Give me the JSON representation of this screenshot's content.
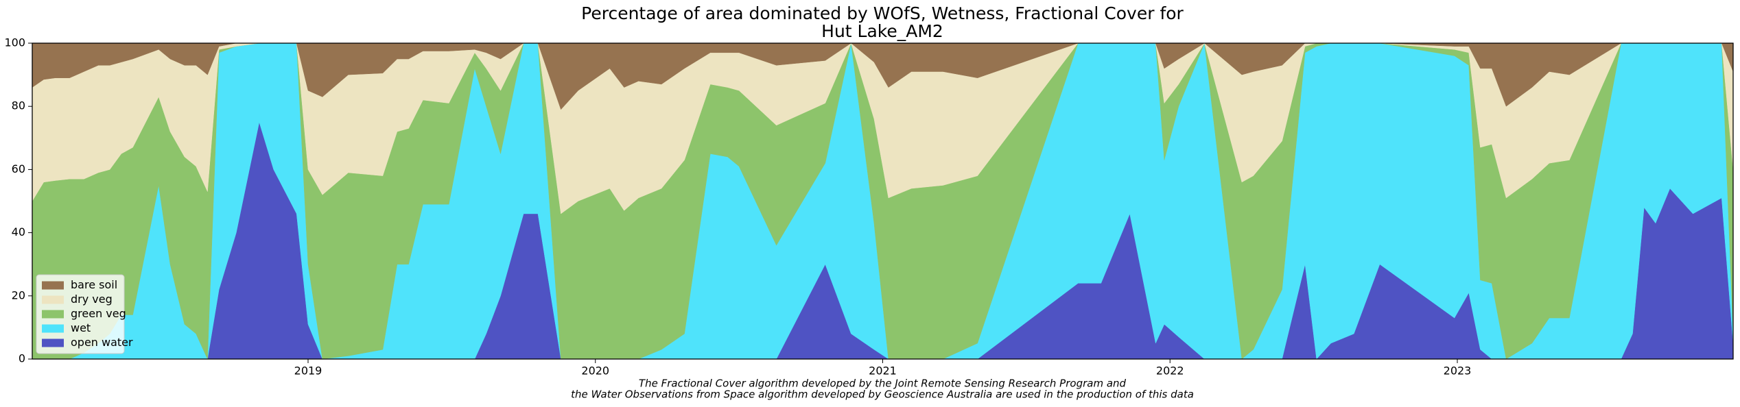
{
  "chart_data": {
    "type": "stacked_area",
    "title": [
      "Percentage of area dominated by WOfS, Wetness, Fractional Cover for",
      "Hut Lake_AM2"
    ],
    "annotations": [
      "The Fractional Cover algorithm developed by the Joint Remote Sensing Research Program and",
      "the Water Observations from Space algorithm developed by Geoscience Australia are used in the production of this data"
    ],
    "x": [
      2018.04,
      2018.08,
      2018.12,
      2018.17,
      2018.22,
      2018.27,
      2018.31,
      2018.35,
      2018.39,
      2018.48,
      2018.52,
      2018.57,
      2018.61,
      2018.65,
      2018.69,
      2018.75,
      2018.83,
      2018.88,
      2018.96,
      2019.0,
      2019.05,
      2019.14,
      2019.26,
      2019.31,
      2019.35,
      2019.4,
      2019.49,
      2019.58,
      2019.62,
      2019.67,
      2019.75,
      2019.8,
      2019.88,
      2019.94,
      2020.05,
      2020.1,
      2020.15,
      2020.23,
      2020.31,
      2020.4,
      2020.46,
      2020.5,
      2020.63,
      2020.8,
      2020.89,
      2020.97,
      2021.02,
      2021.1,
      2021.21,
      2021.33,
      2021.68,
      2021.76,
      2021.86,
      2021.95,
      2021.98,
      2022.03,
      2022.12,
      2022.25,
      2022.29,
      2022.39,
      2022.47,
      2022.51,
      2022.56,
      2022.64,
      2022.73,
      2022.99,
      2023.04,
      2023.08,
      2023.12,
      2023.17,
      2023.26,
      2023.32,
      2023.39,
      2023.57,
      2023.61,
      2023.65,
      2023.69,
      2023.74,
      2023.82,
      2023.92,
      2023.96
    ],
    "series": [
      {
        "name": "bare soil",
        "color": "#967350",
        "values": [
          14,
          11.5,
          11,
          11,
          9,
          7,
          7,
          6,
          5,
          2,
          5,
          7,
          7,
          10,
          1,
          0,
          0,
          0,
          0,
          15,
          17,
          10,
          9.5,
          5,
          5,
          2.5,
          2.5,
          2,
          3,
          5,
          0,
          0,
          21,
          15,
          8,
          14,
          12,
          13,
          8,
          3,
          3,
          3,
          7,
          5.5,
          0,
          6,
          14,
          9,
          9,
          11,
          0,
          0,
          0,
          0,
          8,
          5,
          0,
          10,
          9,
          7,
          0,
          0,
          0,
          0,
          0,
          1,
          1,
          8,
          8,
          20,
          14,
          9,
          10,
          0,
          0,
          0,
          0,
          0,
          0,
          0,
          9
        ]
      },
      {
        "name": "dry veg",
        "color": "#ede4c1",
        "values": [
          36,
          32.5,
          32.5,
          32,
          34,
          34,
          33,
          29,
          28,
          15,
          23,
          29,
          32,
          37,
          1,
          1,
          0,
          0,
          0,
          25,
          31,
          31,
          32.5,
          23,
          22,
          15.5,
          16.5,
          1,
          5,
          10,
          0,
          0,
          33,
          35,
          38,
          39,
          37,
          33,
          29,
          10,
          11,
          12,
          19,
          13.5,
          0,
          18,
          35,
          37,
          36,
          31,
          0,
          0,
          0,
          0,
          11,
          8,
          0,
          34,
          33,
          24,
          1,
          0,
          0,
          0,
          0,
          1,
          2,
          25,
          24,
          29,
          29,
          29,
          27,
          0,
          0,
          0,
          0,
          0,
          0,
          0,
          31
        ]
      },
      {
        "name": "green veg",
        "color": "#8dc46b",
        "values": [
          50,
          56,
          56.5,
          57,
          55,
          54,
          52,
          51,
          53,
          28,
          42,
          53,
          53,
          53,
          1,
          0,
          0,
          0,
          0,
          30,
          52,
          58,
          55,
          42,
          43,
          33,
          32,
          5,
          12,
          20,
          0,
          0,
          46,
          50,
          54,
          47,
          51,
          51,
          55,
          22,
          22,
          24,
          38,
          19,
          0,
          33,
          51,
          54,
          55,
          53,
          0,
          0,
          0,
          0,
          18,
          7,
          0,
          56,
          55,
          47,
          2,
          1,
          0,
          0,
          0,
          2,
          4,
          42,
          44,
          51,
          52,
          49,
          50,
          0,
          0,
          0,
          0,
          0,
          0,
          0,
          52
        ]
      },
      {
        "name": "wet",
        "color": "#4fe3fb",
        "values": [
          0,
          0,
          0,
          0,
          2,
          5,
          8,
          14,
          14,
          55,
          30,
          11,
          8,
          0,
          75,
          59,
          25,
          40,
          54,
          19,
          0,
          1,
          3,
          30,
          30,
          49,
          49,
          92,
          72,
          45,
          54,
          54,
          0,
          0,
          0,
          0,
          0,
          3,
          8,
          65,
          64,
          61,
          36,
          32,
          92,
          40,
          0,
          0,
          0,
          5,
          76,
          76,
          54,
          95,
          52,
          73,
          100,
          0,
          3,
          22,
          67,
          99,
          95,
          92,
          70,
          83,
          72,
          22,
          24,
          0,
          5,
          13,
          13,
          100,
          92,
          52,
          57,
          46,
          54,
          49,
          3
        ]
      },
      {
        "name": "open water",
        "color": "#4f53c3",
        "values": [
          0,
          0,
          0,
          0,
          0,
          0,
          0,
          0,
          0,
          0,
          0,
          0,
          0,
          0,
          22,
          40,
          75,
          60,
          46,
          11,
          0,
          0,
          0,
          0,
          0,
          0,
          0,
          0,
          8,
          20,
          46,
          46,
          0,
          0,
          0,
          0,
          0,
          0,
          0,
          0,
          0,
          0,
          0,
          30,
          8,
          3,
          0,
          0,
          0,
          0,
          24,
          24,
          46,
          5,
          11,
          7,
          0,
          0,
          0,
          0,
          30,
          0,
          5,
          8,
          30,
          13,
          21,
          3,
          0,
          0,
          0,
          0,
          0,
          0,
          8,
          48,
          43,
          54,
          46,
          51,
          5
        ]
      }
    ],
    "xlim": [
      2018.04,
      2023.96
    ],
    "xticks": [
      2019,
      2020,
      2021,
      2022,
      2023
    ],
    "ylim": [
      0,
      100
    ],
    "yticks": [
      0,
      20,
      40,
      60,
      80,
      100
    ],
    "legend": "lower left"
  }
}
